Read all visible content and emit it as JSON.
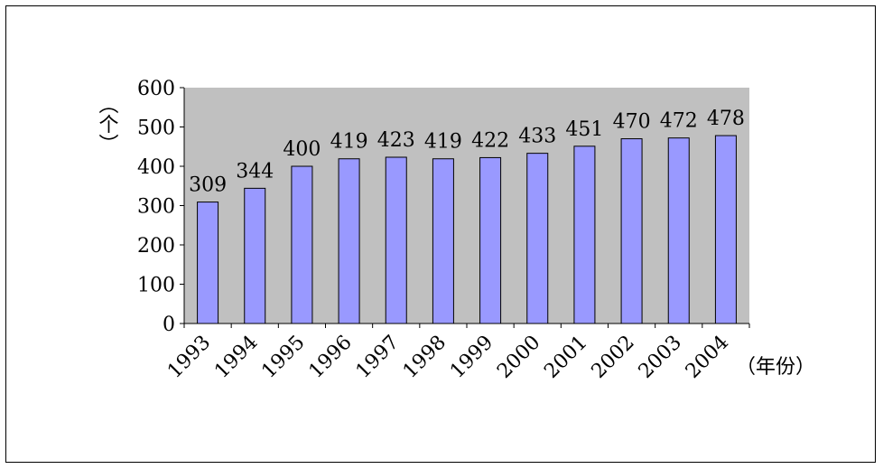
{
  "chart_data": {
    "type": "bar",
    "categories": [
      "1993",
      "1994",
      "1995",
      "1996",
      "1997",
      "1998",
      "1999",
      "2000",
      "2001",
      "2002",
      "2003",
      "2004"
    ],
    "values": [
      309,
      344,
      400,
      419,
      423,
      419,
      422,
      433,
      451,
      470,
      472,
      478
    ],
    "data_labels": [
      "309",
      "344",
      "400",
      "419",
      "423",
      "419",
      "422",
      "433",
      "451",
      "470",
      "472",
      "478"
    ],
    "yticks": [
      "0",
      "100",
      "200",
      "300",
      "400",
      "500",
      "600"
    ],
    "ylim": [
      0,
      600
    ],
    "ylabel": "（个）",
    "xlabel": "（年份）",
    "grid": false,
    "colors": {
      "bar": "#9999ff",
      "plot_bg": "#c0c0c0"
    }
  }
}
